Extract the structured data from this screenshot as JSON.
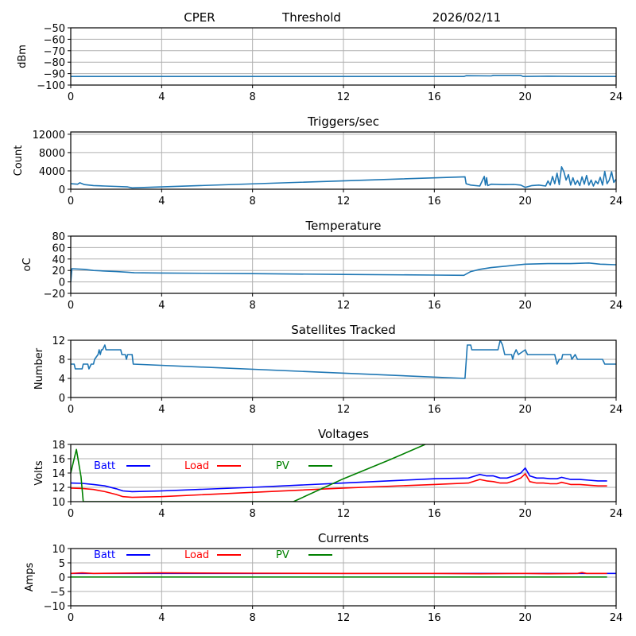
{
  "header": {
    "station": "CPER",
    "mode": "Threshold",
    "date": "2026/02/11"
  },
  "colors": {
    "series_default": "#1f77b4",
    "batt": "#0000ff",
    "load": "#ff0000",
    "pv": "#008000"
  },
  "chart_data": [
    {
      "type": "line",
      "title": "",
      "xlabel": "",
      "ylabel": "dBm",
      "xlim": [
        0,
        24
      ],
      "ylim": [
        -100,
        -50
      ],
      "xticks": [
        0,
        4,
        8,
        12,
        16,
        20,
        24
      ],
      "yticks": [
        -100,
        -90,
        -80,
        -70,
        -60,
        -50
      ],
      "grid": true,
      "series": [
        {
          "name": "threshold",
          "color": "#1f77b4",
          "x": [
            0,
            17.3,
            17.4,
            18.5,
            18.6,
            19.8,
            19.9,
            21.0,
            22.0,
            23.0,
            24
          ],
          "y": [
            -92.5,
            -92.5,
            -91.8,
            -92,
            -91.5,
            -91.5,
            -92.5,
            -92.2,
            -92.4,
            -92.5,
            -92.5
          ]
        }
      ]
    },
    {
      "type": "line",
      "title": "Triggers/sec",
      "xlabel": "",
      "ylabel": "Count",
      "xlim": [
        0,
        24
      ],
      "ylim": [
        0,
        12500
      ],
      "xticks": [
        0,
        4,
        8,
        12,
        16,
        20,
        24
      ],
      "yticks": [
        0,
        4000,
        8000,
        12000
      ],
      "grid": true,
      "series": [
        {
          "name": "triggers",
          "color": "#1f77b4",
          "x": [
            0,
            0.3,
            0.4,
            0.6,
            1.0,
            1.5,
            2.0,
            2.5,
            2.7,
            17.35,
            17.4,
            17.6,
            18.0,
            18.2,
            18.25,
            18.3,
            18.35,
            18.5,
            19.0,
            19.5,
            19.8,
            20.0,
            20.3,
            20.6,
            20.9,
            21.0,
            21.1,
            21.2,
            21.3,
            21.4,
            21.5,
            21.6,
            21.7,
            21.8,
            21.9,
            22.0,
            22.1,
            22.2,
            22.3,
            22.4,
            22.5,
            22.6,
            22.7,
            22.8,
            22.9,
            23.0,
            23.1,
            23.2,
            23.3,
            23.4,
            23.5,
            23.6,
            23.7,
            23.8,
            23.9,
            24
          ],
          "y": [
            1200,
            1100,
            1400,
            1000,
            800,
            700,
            600,
            500,
            300,
            2700,
            1200,
            900,
            700,
            2800,
            900,
            2500,
            800,
            1100,
            1000,
            1050,
            900,
            400,
            800,
            900,
            700,
            1800,
            900,
            2800,
            1200,
            3500,
            1000,
            4900,
            3800,
            2000,
            3200,
            900,
            2500,
            1000,
            1900,
            800,
            2700,
            1100,
            3000,
            900,
            2000,
            700,
            1800,
            1200,
            2600,
            900,
            3900,
            1200,
            2000,
            3800,
            1500,
            2200
          ]
        }
      ]
    },
    {
      "type": "line",
      "title": "Temperature",
      "xlabel": "",
      "ylabel": "°C",
      "ylabel_display": "oC",
      "xlim": [
        0,
        24
      ],
      "ylim": [
        -20,
        80
      ],
      "xticks": [
        0,
        4,
        8,
        12,
        16,
        20,
        24
      ],
      "yticks": [
        -20,
        0,
        20,
        40,
        60,
        80
      ],
      "grid": true,
      "series": [
        {
          "name": "temperature",
          "color": "#1f77b4",
          "x": [
            0,
            0.05,
            0.6,
            1.0,
            1.5,
            2.0,
            2.5,
            2.8,
            4,
            8,
            12,
            16,
            17.3,
            17.6,
            18.0,
            18.5,
            19.0,
            19.5,
            20.0,
            21.0,
            22.0,
            22.8,
            23.3,
            24
          ],
          "y": [
            0,
            23,
            22,
            20,
            19,
            18,
            17,
            16,
            15.5,
            14.5,
            13,
            12,
            11.5,
            18,
            22,
            25,
            27,
            29,
            31,
            32,
            32,
            33,
            31,
            30
          ]
        }
      ]
    },
    {
      "type": "line",
      "title": "Satellites Tracked",
      "xlabel": "",
      "ylabel": "Number",
      "xlim": [
        0,
        24
      ],
      "ylim": [
        0,
        12
      ],
      "xticks": [
        0,
        4,
        8,
        12,
        16,
        20,
        24
      ],
      "yticks": [
        0,
        4,
        8,
        12
      ],
      "grid": true,
      "series": [
        {
          "name": "satellites",
          "color": "#1f77b4",
          "x": [
            0,
            0.15,
            0.2,
            0.5,
            0.55,
            0.75,
            0.8,
            0.9,
            1.0,
            1.05,
            1.2,
            1.25,
            1.3,
            1.35,
            1.4,
            1.5,
            1.55,
            1.6,
            2.2,
            2.25,
            2.4,
            2.45,
            2.5,
            2.7,
            2.75,
            17.35,
            17.45,
            17.6,
            17.65,
            18.8,
            18.85,
            18.9,
            19.0,
            19.1,
            19.4,
            19.45,
            19.5,
            19.6,
            19.7,
            20.0,
            20.1,
            21.3,
            21.4,
            21.5,
            21.6,
            21.65,
            22.0,
            22.05,
            22.2,
            22.3,
            22.35,
            22.4,
            23.4,
            23.5,
            24
          ],
          "y": [
            7,
            7,
            6,
            6,
            7,
            7,
            6,
            7,
            7,
            8,
            9,
            10,
            9,
            10,
            10,
            11,
            10,
            10,
            10,
            9,
            9,
            8,
            9,
            9,
            7,
            4,
            11,
            11,
            10,
            10,
            11,
            12,
            11,
            9,
            9,
            8,
            9,
            10,
            9,
            10,
            9,
            9,
            7,
            8,
            8,
            9,
            9,
            8,
            9,
            8,
            8,
            8,
            8,
            7,
            7
          ]
        }
      ]
    },
    {
      "type": "line",
      "title": "Voltages",
      "xlabel": "",
      "ylabel": "Volts",
      "xlim": [
        0,
        24
      ],
      "ylim": [
        10,
        18
      ],
      "xticks": [
        0,
        4,
        8,
        12,
        16,
        20,
        24
      ],
      "yticks": [
        10,
        12,
        14,
        16,
        18
      ],
      "grid": true,
      "legend": {
        "placement": "top-left",
        "entries": [
          "Batt",
          "Load",
          "PV"
        ]
      },
      "series": [
        {
          "name": "Batt",
          "color": "#0000ff",
          "x": [
            0,
            0.5,
            1.0,
            1.5,
            2.0,
            2.3,
            2.7,
            4,
            8,
            12,
            16,
            17.5,
            17.8,
            18.0,
            18.3,
            18.6,
            18.9,
            19.2,
            19.5,
            19.8,
            20.0,
            20.2,
            20.5,
            20.8,
            21.1,
            21.4,
            21.6,
            22.0,
            22.4,
            22.8,
            23.2,
            23.6
          ],
          "y": [
            12.6,
            12.55,
            12.4,
            12.2,
            11.8,
            11.5,
            11.4,
            11.5,
            12.0,
            12.6,
            13.2,
            13.3,
            13.6,
            13.8,
            13.6,
            13.6,
            13.3,
            13.3,
            13.6,
            14.0,
            14.7,
            13.6,
            13.3,
            13.3,
            13.2,
            13.2,
            13.4,
            13.1,
            13.1,
            13.0,
            12.9,
            12.9
          ]
        },
        {
          "name": "Load",
          "color": "#ff0000",
          "x": [
            0,
            0.5,
            1.0,
            1.5,
            2.0,
            2.3,
            2.7,
            4,
            8,
            12,
            16,
            17.5,
            17.8,
            18.0,
            18.3,
            18.6,
            18.9,
            19.2,
            19.5,
            19.8,
            20.0,
            20.2,
            20.5,
            20.8,
            21.1,
            21.4,
            21.6,
            22.0,
            22.4,
            22.8,
            23.2,
            23.6
          ],
          "y": [
            11.9,
            11.85,
            11.7,
            11.4,
            11.0,
            10.7,
            10.6,
            10.7,
            11.3,
            11.9,
            12.4,
            12.6,
            12.9,
            13.1,
            12.9,
            12.8,
            12.6,
            12.6,
            12.9,
            13.3,
            13.9,
            12.8,
            12.6,
            12.6,
            12.5,
            12.5,
            12.7,
            12.4,
            12.4,
            12.3,
            12.2,
            12.2
          ]
        },
        {
          "name": "PV",
          "color": "#008000",
          "x": [
            0,
            0.25,
            0.45,
            0.55,
            9.8,
            12,
            14,
            15.6
          ],
          "y": [
            14.0,
            17.3,
            13.5,
            10.0,
            10.0,
            13.2,
            15.8,
            18.0
          ]
        }
      ]
    },
    {
      "type": "line",
      "title": "Currents",
      "xlabel": "",
      "ylabel": "Amps",
      "xlim": [
        0,
        24
      ],
      "ylim": [
        -10,
        10
      ],
      "xticks": [
        0,
        4,
        8,
        12,
        16,
        20,
        24
      ],
      "yticks": [
        -10,
        -5,
        0,
        5,
        10
      ],
      "grid": true,
      "legend": {
        "placement": "top-left",
        "entries": [
          "Batt",
          "Load",
          "PV"
        ]
      },
      "series": [
        {
          "name": "Batt",
          "color": "#0000ff",
          "x": [
            0,
            24
          ],
          "y": [
            1.3,
            1.3
          ]
        },
        {
          "name": "Load",
          "color": "#ff0000",
          "x": [
            0,
            0.5,
            1,
            4,
            8,
            12,
            16,
            18,
            20,
            21,
            22.3,
            22.5,
            22.7,
            23.6
          ],
          "y": [
            1.3,
            1.5,
            1.3,
            1.5,
            1.4,
            1.3,
            1.3,
            1.2,
            1.3,
            1.2,
            1.3,
            1.6,
            1.3,
            1.3
          ]
        },
        {
          "name": "PV",
          "color": "#008000",
          "x": [
            0,
            23.6
          ],
          "y": [
            0.05,
            0.05
          ]
        }
      ]
    }
  ]
}
